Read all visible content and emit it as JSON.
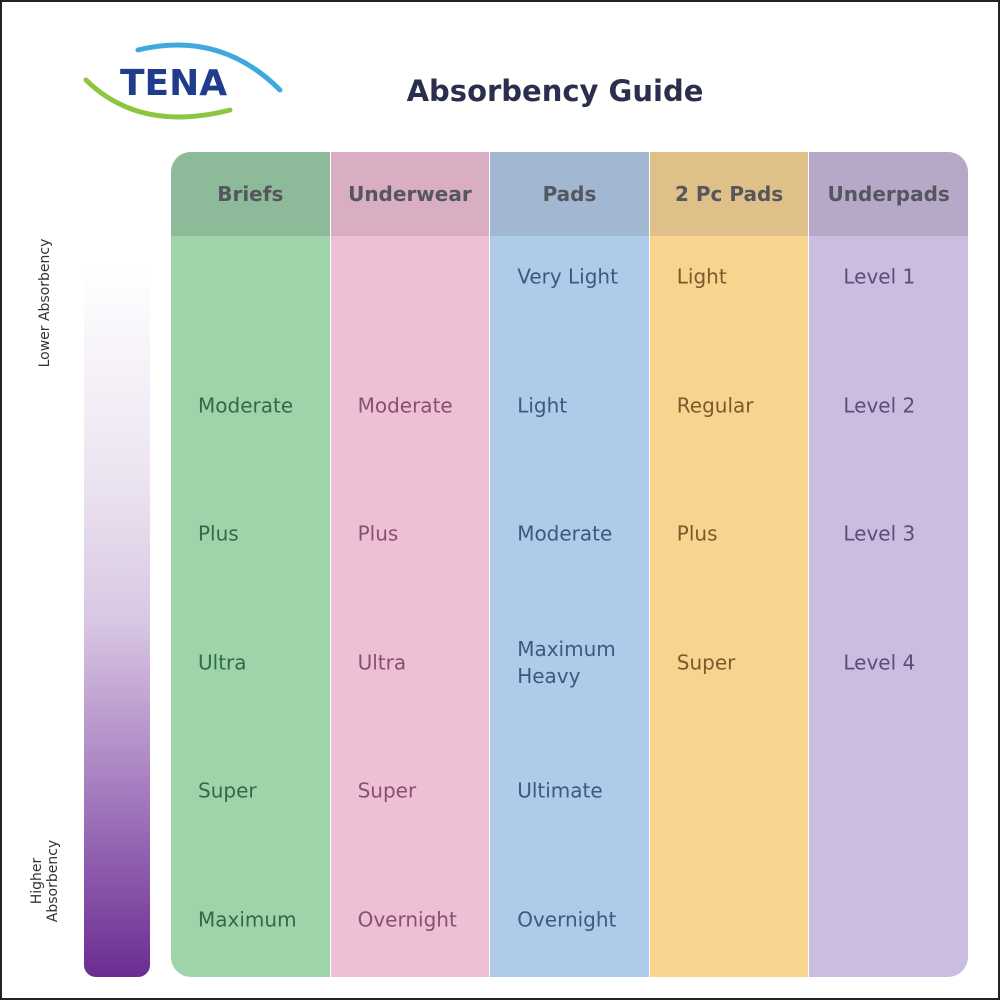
{
  "logo": "TENA",
  "title": "Absorbency Guide",
  "scale": {
    "top": "Lower Absorbency",
    "bottom": "Higher Absorbency"
  },
  "columns": [
    {
      "header": "Briefs",
      "items": [
        null,
        "Moderate",
        "Plus",
        "Ultra",
        "Super",
        "Maximum"
      ]
    },
    {
      "header": "Underwear",
      "items": [
        null,
        "Moderate",
        "Plus",
        "Ultra",
        "Super",
        "Overnight"
      ]
    },
    {
      "header": "Pads",
      "items": [
        "Very Light",
        "Light",
        "Moderate",
        "Maximum Heavy",
        "Ultimate",
        "Overnight"
      ]
    },
    {
      "header": "2 Pc Pads",
      "items": [
        "Light",
        "Regular",
        "Plus",
        "Super",
        null,
        null
      ]
    },
    {
      "header": "Underpads",
      "items": [
        "Level 1",
        "Level 2",
        "Level 3",
        "Level 4",
        null,
        null
      ]
    }
  ]
}
